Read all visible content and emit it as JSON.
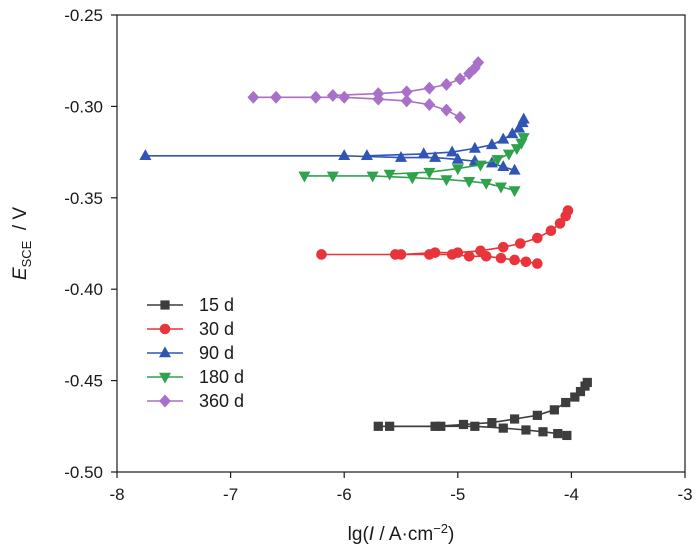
{
  "chart_data": {
    "type": "line",
    "xlabel": {
      "pre": "lg(",
      "italic": "I",
      "post": " / A·cm",
      "sup": "−2",
      "close": ")"
    },
    "ylabel": {
      "main": "E",
      "sub": "SCE",
      "unit": "  / V"
    },
    "xlim": [
      -8,
      -3
    ],
    "ylim": [
      -0.5,
      -0.25
    ],
    "xticks": [
      -8,
      -7,
      -6,
      -5,
      -4,
      -3
    ],
    "xtick_labels": [
      "-8",
      "-7",
      "-6",
      "-5",
      "-4",
      "-3"
    ],
    "yticks": [
      -0.25,
      -0.3,
      -0.35,
      -0.4,
      -0.45,
      -0.5
    ],
    "ytick_labels": [
      "-0.25",
      "-0.30",
      "-0.35",
      "-0.40",
      "-0.45",
      "-0.50"
    ],
    "grid": false,
    "legend_position": "bottom-left",
    "series": [
      {
        "name": "15 d",
        "color": "#3d3d3d",
        "marker": "square",
        "cathodic": {
          "x": [
            -5.7,
            -5.15,
            -4.85,
            -4.6,
            -4.4,
            -4.25,
            -4.12,
            -4.04
          ],
          "y": [
            -0.475,
            -0.475,
            -0.475,
            -0.476,
            -0.477,
            -0.478,
            -0.479,
            -0.48
          ]
        },
        "anodic": {
          "x": [
            -5.6,
            -5.2,
            -4.95,
            -4.7,
            -4.5,
            -4.3,
            -4.15,
            -4.05,
            -3.97,
            -3.92,
            -3.88,
            -3.86
          ],
          "y": [
            -0.475,
            -0.475,
            -0.474,
            -0.473,
            -0.471,
            -0.469,
            -0.466,
            -0.462,
            -0.459,
            -0.456,
            -0.453,
            -0.451
          ]
        }
      },
      {
        "name": "30 d",
        "color": "#e8343a",
        "marker": "circle",
        "cathodic": {
          "x": [
            -6.2,
            -5.55,
            -5.25,
            -5.05,
            -4.9,
            -4.75,
            -4.62,
            -4.5,
            -4.4,
            -4.3
          ],
          "y": [
            -0.381,
            -0.381,
            -0.381,
            -0.381,
            -0.382,
            -0.382,
            -0.383,
            -0.384,
            -0.385,
            -0.386
          ]
        },
        "anodic": {
          "x": [
            -5.5,
            -5.2,
            -5.0,
            -4.8,
            -4.6,
            -4.45,
            -4.3,
            -4.18,
            -4.1,
            -4.05,
            -4.03
          ],
          "y": [
            -0.381,
            -0.38,
            -0.38,
            -0.379,
            -0.377,
            -0.375,
            -0.372,
            -0.368,
            -0.364,
            -0.36,
            -0.357
          ]
        }
      },
      {
        "name": "90 d",
        "color": "#3055b4",
        "marker": "triangle-up",
        "cathodic": {
          "x": [
            -7.75,
            -6.0,
            -5.5,
            -5.2,
            -5.0,
            -4.85,
            -4.7,
            -4.6,
            -4.5
          ],
          "y": [
            -0.327,
            -0.327,
            -0.328,
            -0.328,
            -0.329,
            -0.33,
            -0.331,
            -0.333,
            -0.335
          ]
        },
        "anodic": {
          "x": [
            -5.8,
            -5.3,
            -5.05,
            -4.85,
            -4.7,
            -4.6,
            -4.52,
            -4.46,
            -4.43,
            -4.42
          ],
          "y": [
            -0.327,
            -0.326,
            -0.325,
            -0.323,
            -0.321,
            -0.318,
            -0.315,
            -0.312,
            -0.309,
            -0.307
          ]
        }
      },
      {
        "name": "180 d",
        "color": "#2ea24c",
        "marker": "triangle-down",
        "cathodic": {
          "x": [
            -6.35,
            -6.1,
            -5.75,
            -5.4,
            -5.1,
            -4.9,
            -4.75,
            -4.62,
            -4.5
          ],
          "y": [
            -0.338,
            -0.338,
            -0.338,
            -0.339,
            -0.34,
            -0.341,
            -0.342,
            -0.344,
            -0.346
          ]
        },
        "anodic": {
          "x": [
            -5.6,
            -5.25,
            -5.0,
            -4.8,
            -4.65,
            -4.55,
            -4.48,
            -4.44,
            -4.42
          ],
          "y": [
            -0.337,
            -0.336,
            -0.334,
            -0.332,
            -0.329,
            -0.326,
            -0.323,
            -0.32,
            -0.317
          ]
        }
      },
      {
        "name": "360 d",
        "color": "#a870c8",
        "marker": "diamond",
        "cathodic": {
          "x": [
            -6.8,
            -6.6,
            -6.25,
            -6.0,
            -5.7,
            -5.45,
            -5.25,
            -5.1,
            -4.98
          ],
          "y": [
            -0.295,
            -0.295,
            -0.295,
            -0.295,
            -0.296,
            -0.297,
            -0.299,
            -0.302,
            -0.306
          ]
        },
        "anodic": {
          "x": [
            -6.1,
            -5.7,
            -5.45,
            -5.25,
            -5.1,
            -4.98,
            -4.9,
            -4.85,
            -4.82
          ],
          "y": [
            -0.294,
            -0.293,
            -0.292,
            -0.29,
            -0.288,
            -0.285,
            -0.282,
            -0.279,
            -0.276
          ]
        }
      }
    ]
  }
}
